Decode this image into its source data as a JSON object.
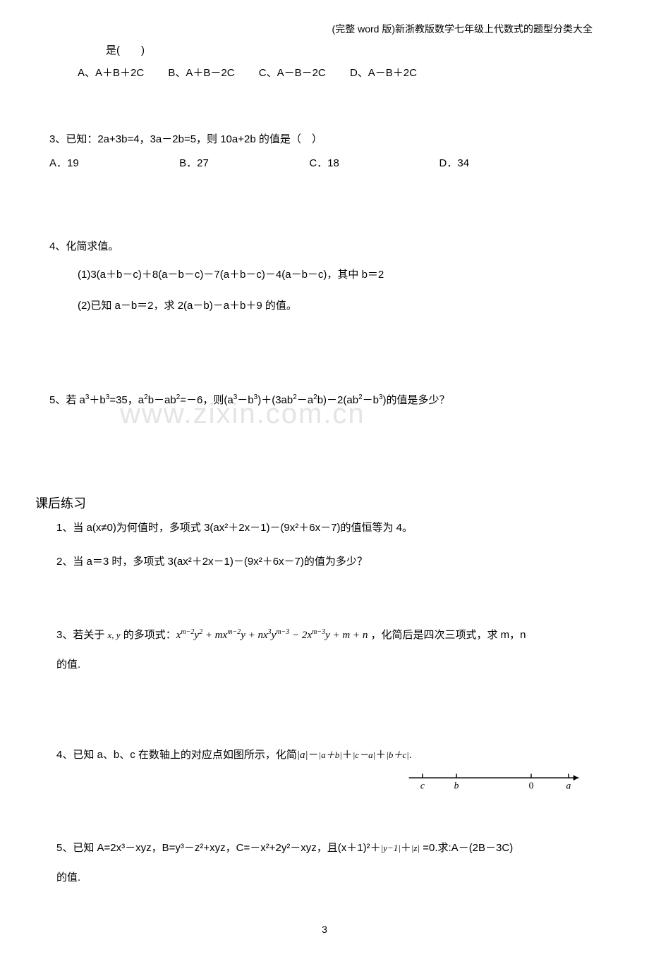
{
  "header": "(完整 word 版)新浙教版数学七年级上代数式的题型分类大全",
  "watermark": "www.zixin.com.cn",
  "q2_continuation": "是(　　)",
  "q2_options": {
    "A": "A、A＋B＋2C",
    "B": "B、A＋B－2C",
    "C": "C、A－B－2C",
    "D": "D、A－B＋2C"
  },
  "q3": {
    "text": "3、已知：2a+3b=4，3a－2b=5，则 10a+2b 的值是（　）",
    "A": "A．19",
    "B": "B．27",
    "C": "C．18",
    "D": "D．34"
  },
  "q4": {
    "title": "4、化简求值。",
    "sub1": "(1)3(a＋b－c)＋8(a－b－c)－7(a＋b－c)－4(a－b－c)，其中 b＝2",
    "sub2": "(2)已知 a－b＝2，求 2(a－b)－a＋b＋9 的值。"
  },
  "q5": {
    "prefix": "5、若 a",
    "mid1": "＋b",
    "mid2": "=35，a",
    "mid3": "b－ab",
    "mid4": "=－6，则(a",
    "mid5": "－b",
    "mid6": ")＋(3ab",
    "mid7": "－a",
    "mid8": "b)－2(ab",
    "mid9": "－b",
    "suffix": ")的值是多少？"
  },
  "section": "课后练习",
  "p1": "1、当 a(x≠0)为何值时，多项式 3(ax²＋2x－1)－(9x²＋6x－7)的值恒等为 4。",
  "p2": "2、当 a＝3 时，多项式 3(ax²＋2x－1)－(9x²＋6x－7)的值为多少？",
  "p3": {
    "prefix": "3、若关于 ",
    "vars": "x, y",
    "mid": " 的多项式：",
    "poly_parts": {
      "t1a": "x",
      "t1e1": "m−2",
      "t1b": "y",
      "t1e2": "2",
      "plus1": " + m",
      "t2a": "x",
      "t2e1": "m−2",
      "t2b": "y",
      "plus2": " + n",
      "t3a": "x",
      "t3e1": "3",
      "t3b": "y",
      "t3e2": "m−3",
      "minus1": " − 2",
      "t4a": "x",
      "t4e1": "m−3",
      "t4b": "y",
      "plus3": " + m + n"
    },
    "suffix": " ，化简后是四次三项式，求 m，n",
    "line2": "的值."
  },
  "p4": {
    "prefix": "4、已知 a、b、c 在数轴上的对应点如图所示，化简",
    "abs1": "|a|",
    "dash1": "－",
    "abs2": "|a＋b|",
    "plus1": "＋",
    "abs3": "|c－a|",
    "plus2": "＋",
    "abs4": "|b＋c|",
    "end": "."
  },
  "number_line": {
    "labels": [
      "c",
      "b",
      "0",
      "a"
    ],
    "positions": [
      30,
      80,
      190,
      245
    ],
    "line_start": 10,
    "line_end": 260,
    "tick_y": 10,
    "tick_h": 6,
    "label_y": 32,
    "stroke": "#000000",
    "font_size": 14,
    "font_style": "italic"
  },
  "p5": {
    "prefix": "5、已知 A=2x³－xyz，B=y³－z²+xyz，C=－x²+2y²－xyz，且(x＋1)²＋",
    "abs1": "|y−1|",
    "plus": "＋",
    "abs2": "|z|",
    "mid": " =0.求:A－(2B－3C)",
    "line2": "的值."
  },
  "page_number": "3",
  "colors": {
    "text": "#000000",
    "watermark": "#e4e4e4",
    "background": "#ffffff"
  },
  "typography": {
    "body_font_size": 15,
    "header_font_size": 14,
    "section_font_size": 18,
    "watermark_font_size": 40,
    "sup_font_size": 10
  }
}
